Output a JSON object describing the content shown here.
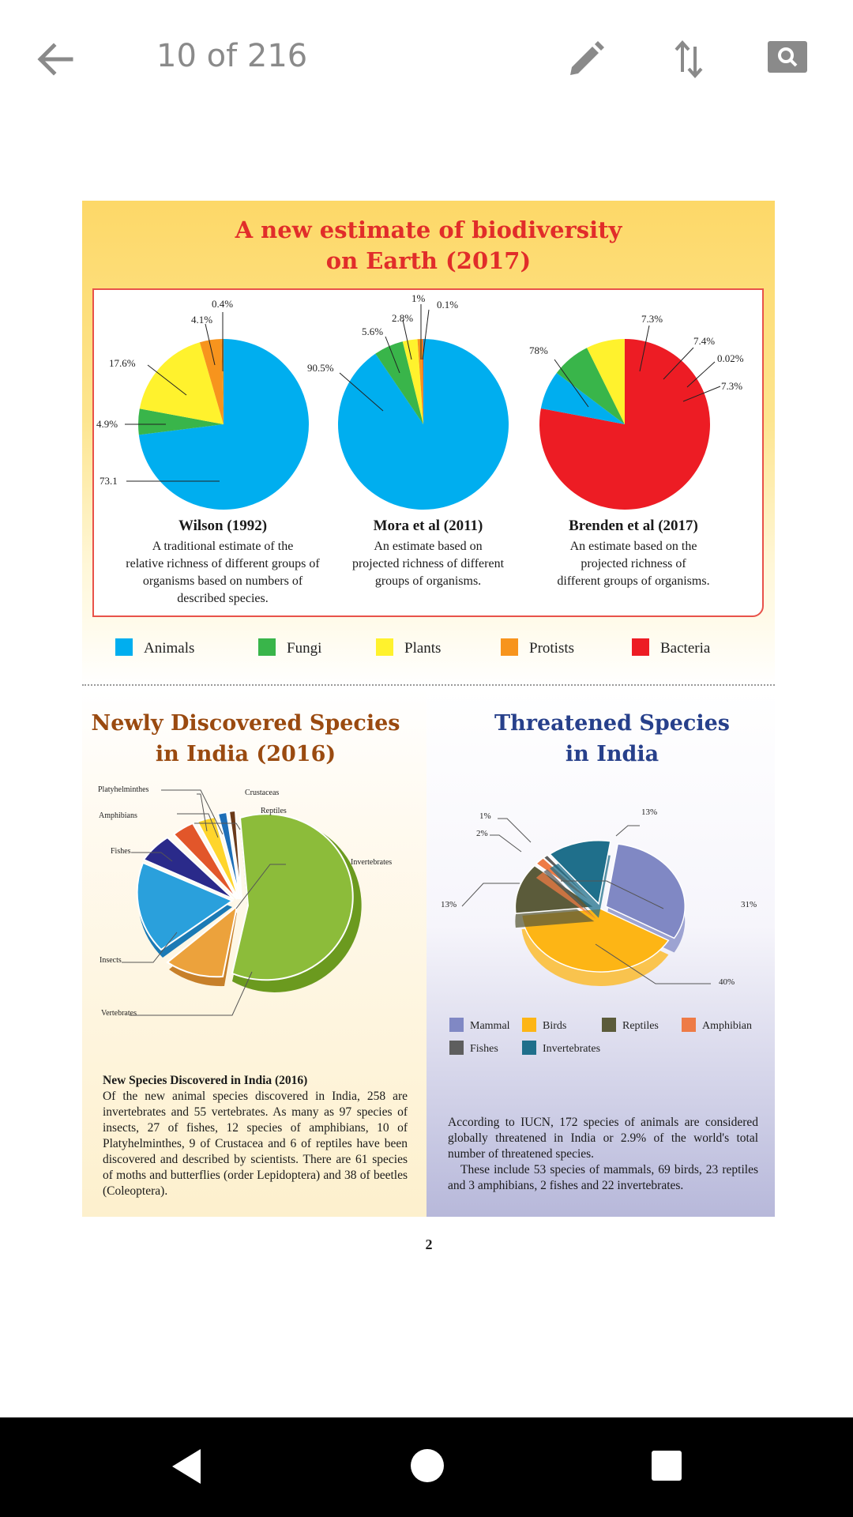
{
  "appbar": {
    "page_counter": "10 of 216",
    "icons": [
      "back-arrow-icon",
      "pencil-icon",
      "sort-arrows-icon",
      "search-icon"
    ]
  },
  "biodiversity": {
    "title_line1": "A new estimate of biodiversity",
    "title_line2": "on Earth (2017)",
    "wilson": {
      "title": "Wilson (1992)",
      "desc": [
        "A traditional estimate of the",
        "relative richness of different groups of",
        "organisms based on numbers of",
        "described species."
      ],
      "labels": {
        "protists_a": "0.4%",
        "protists_b": "4.1%",
        "plants": "17.6%",
        "fungi": "4.9%",
        "animals": "73.1"
      }
    },
    "mora": {
      "title": "Mora et al (2011)",
      "desc": [
        "An estimate based on",
        "projected richness of different",
        "groups of organisms."
      ],
      "labels": {
        "a": "1%",
        "b": "0.1%",
        "c": "2.8%",
        "d": "5.6%",
        "animals": "90.5%"
      }
    },
    "brenden": {
      "title": "Brenden et al (2017)",
      "desc": [
        "An estimate based on the",
        "projected richness of",
        "different groups of organisms."
      ],
      "labels": {
        "bacteria": "78%",
        "animals": "7.3%",
        "fungi": "7.4%",
        "protists": "0.02%",
        "plants": "7.3%"
      }
    },
    "legend": [
      "Animals",
      "Fungi",
      "Plants",
      "Protists",
      "Bacteria"
    ],
    "colors": {
      "animals": "#00aeef",
      "fungi": "#39b54a",
      "plants": "#fff22d",
      "protists": "#f7941d",
      "bacteria": "#ed1c24"
    }
  },
  "chart_data": [
    {
      "type": "pie",
      "title": "Wilson (1992)",
      "categories": [
        "Animals",
        "Fungi",
        "Plants",
        "Protists",
        "Protists",
        "Bacteria"
      ],
      "values": [
        73.1,
        4.9,
        17.6,
        4.1,
        0.4,
        0
      ]
    },
    {
      "type": "pie",
      "title": "Mora et al (2011)",
      "categories": [
        "Animals",
        "Fungi",
        "Plants",
        "Protists",
        "Bacteria"
      ],
      "values": [
        90.5,
        5.6,
        2.8,
        1,
        0.1
      ]
    },
    {
      "type": "pie",
      "title": "Brenden et al (2017)",
      "categories": [
        "Bacteria",
        "Animals",
        "Fungi",
        "Plants",
        "Protists"
      ],
      "values": [
        78,
        7.3,
        7.4,
        7.3,
        0.02
      ]
    },
    {
      "type": "pie",
      "title": "Threatened Species in India",
      "categories": [
        "Mammal",
        "Birds",
        "Reptiles",
        "Amphibian",
        "Fishes",
        "Invertebrates"
      ],
      "values": [
        31,
        40,
        13,
        2,
        1,
        13
      ]
    }
  ],
  "newspecies": {
    "title_line1": "Newly Discovered Species",
    "title_line2": "in India (2016)",
    "labels": {
      "platy": "Platyhelminthes",
      "crust": "Crustaceas",
      "reptiles": "Reptiles",
      "amphibians": "Amphibians",
      "fishes": "Fishes",
      "inverts": "Invertebrates",
      "insects": "Insects",
      "verts": "Vertebrates"
    },
    "text_title": "New Species Discovered in India (2016)",
    "text_body": "Of the new animal species discovered in India, 258 are invertebrates and 55 vertebrates. As many as 97 species of insects, 27 of fishes, 12 species of amphibians, 10 of Platyhelminthes, 9 of Crustacea and 6 of reptiles have been discovered and described by scientists. There are 61 species of moths and butterflies (order Lepidoptera) and 38 of beetles (Coleoptera)."
  },
  "threatened": {
    "title_line1": "Threatened Species",
    "title_line2": "in India",
    "labels": {
      "one": "1%",
      "two": "2%",
      "thirteen_a": "13%",
      "thirteen_b": "13%",
      "thirtyone": "31%",
      "forty": "40%"
    },
    "legend": [
      "Mammal",
      "Birds",
      "Reptiles",
      "Amphibian",
      "Fishes",
      "Invertebrates"
    ],
    "colors": {
      "mammal": "#8088c4",
      "birds": "#fdb515",
      "reptiles": "#5b5b3a",
      "amphibian": "#ee7b46",
      "fishes": "#5e5e5e",
      "invertebrates": "#1f6f8b"
    },
    "text_p1": "According to IUCN, 172 species of animals are considered globally threatened in India or 2.9% of the world's total number of threatened species.",
    "text_p2": "These include 53 species of mammals, 69 birds, 23 reptiles and 3 amphibians, 2 fishes and 22 invertebrates."
  },
  "page_number": "2"
}
